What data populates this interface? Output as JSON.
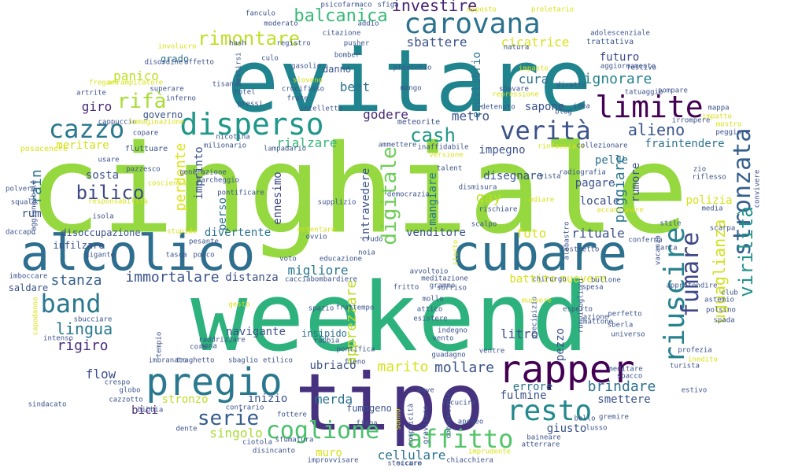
{
  "words": [
    {
      "text": "cinghiale",
      "color": "#95d840"
    },
    {
      "text": "weekend",
      "color": "#2db27d"
    },
    {
      "text": "evitare",
      "color": "#1f848e"
    },
    {
      "text": "tipo",
      "color": "#46327e"
    },
    {
      "text": "alcolico",
      "color": "#2e6e8e"
    },
    {
      "text": "cubare",
      "color": "#2d708e"
    },
    {
      "text": "rapper",
      "color": "#440154"
    },
    {
      "text": "pregio",
      "color": "#2a788e"
    },
    {
      "text": "carovana",
      "color": "#2c728e"
    },
    {
      "text": "disperso",
      "color": "#1f988b"
    },
    {
      "text": "verità",
      "color": "#3b528b"
    },
    {
      "text": "limite",
      "color": "#440154"
    },
    {
      "text": "riuscire",
      "color": "#26828e"
    },
    {
      "text": "fumare",
      "color": "#3f4788"
    },
    {
      "text": "resto",
      "color": "#23898e"
    },
    {
      "text": "affitto",
      "color": "#52c569"
    },
    {
      "text": "coglione",
      "color": "#4ac16d"
    },
    {
      "text": "cazzo",
      "color": "#2a788e"
    },
    {
      "text": "band",
      "color": "#2a788e"
    },
    {
      "text": "stronzata",
      "color": "#355f8d"
    },
    {
      "text": "virilità",
      "color": "#21918c"
    },
    {
      "text": "digitale",
      "color": "#6ece58"
    },
    {
      "text": "balcanica",
      "color": "#38b977"
    },
    {
      "text": "rimontare",
      "color": "#bddf26"
    },
    {
      "text": "investire",
      "color": "#482173"
    },
    {
      "text": "bilico",
      "color": "#3e4989"
    },
    {
      "text": "rifà",
      "color": "#a8db34"
    },
    {
      "text": "serie",
      "color": "#365d8d"
    },
    {
      "text": "cash",
      "color": "#1f988b"
    },
    {
      "text": "alieno",
      "color": "#39558c"
    },
    {
      "text": "uguaglianza",
      "color": "#d0e11c"
    },
    {
      "text": "lingua",
      "color": "#2a788e"
    },
    {
      "text": "rain",
      "color": "#2b758e"
    },
    {
      "text": "stanza",
      "color": "#34618d"
    },
    {
      "text": "marito",
      "color": "#d8e219"
    },
    {
      "text": "apprezzare",
      "color": "#bddf26"
    },
    {
      "text": "immortalare",
      "color": "#3b528b"
    },
    {
      "text": "perdente",
      "color": "#dde318"
    },
    {
      "text": "rigiro",
      "color": "#472d7b"
    },
    {
      "text": "mollare",
      "color": "#3b528b"
    },
    {
      "text": "brindare",
      "color": "#2c728e"
    },
    {
      "text": "litro",
      "color": "#3b528b"
    },
    {
      "text": "cicatrice",
      "color": "#d8e219"
    },
    {
      "text": "sbattere",
      "color": "#3b528b"
    },
    {
      "text": "futuro",
      "color": "#3e4989"
    },
    {
      "text": "ignorare",
      "color": "#26828e"
    },
    {
      "text": "fraintendere",
      "color": "#2c728e"
    },
    {
      "text": "panico",
      "color": "#bddf26"
    },
    {
      "text": "metro",
      "color": "#3b528b"
    },
    {
      "text": "giro",
      "color": "#482878"
    },
    {
      "text": "sapone",
      "color": "#3b528b"
    },
    {
      "text": "poggiare",
      "color": "#2a788e"
    },
    {
      "text": "pelle",
      "color": "#2c728e"
    },
    {
      "text": "migliore",
      "color": "#2a788e"
    },
    {
      "text": "venditore",
      "color": "#3b528b"
    },
    {
      "text": "ennesimo",
      "color": "#3e4989"
    },
    {
      "text": "rialzare",
      "color": "#35b779"
    },
    {
      "text": "godere",
      "color": "#482878"
    },
    {
      "text": "meritare",
      "color": "#d2e21b"
    },
    {
      "text": "sosta",
      "color": "#3b528b"
    },
    {
      "text": "bici",
      "color": "#482878"
    },
    {
      "text": "stronzo",
      "color": "#bddf26"
    },
    {
      "text": "merda",
      "color": "#2c728e"
    },
    {
      "text": "rituale",
      "color": "#3b528b"
    },
    {
      "text": "foto",
      "color": "#d8e219"
    },
    {
      "text": "errore",
      "color": "#2c728e"
    },
    {
      "text": "giusto",
      "color": "#3b528b"
    },
    {
      "text": "flow",
      "color": "#3b528b"
    },
    {
      "text": "navigante",
      "color": "#3b528b"
    },
    {
      "text": "singolo",
      "color": "#a8db34"
    },
    {
      "text": "muro",
      "color": "#d8e219"
    },
    {
      "text": "cellulare",
      "color": "#2c728e"
    },
    {
      "text": "ubriaco",
      "color": "#3b528b"
    },
    {
      "text": "mangiare",
      "color": "#2a788e"
    },
    {
      "text": "gay",
      "color": "#bddf26"
    },
    {
      "text": "intravedere",
      "color": "#3b528b"
    },
    {
      "text": "cura",
      "color": "#2c728e"
    },
    {
      "text": "beat",
      "color": "#2c728e"
    },
    {
      "text": "polizia",
      "color": "#d8e219"
    },
    {
      "text": "rumore",
      "color": "#3b528b"
    },
    {
      "text": "pagare",
      "color": "#3b528b"
    },
    {
      "text": "locale",
      "color": "#3b528b"
    },
    {
      "text": "imprinto",
      "color": "#3b528b"
    },
    {
      "text": "rum",
      "color": "#3b528b"
    },
    {
      "text": "perso",
      "color": "#2c728e"
    },
    {
      "text": "distanza",
      "color": "#3b528b"
    },
    {
      "text": "divertente",
      "color": "#2c728e"
    },
    {
      "text": "disegnare",
      "color": "#3b528b"
    },
    {
      "text": "impegno",
      "color": "#3b528b"
    },
    {
      "text": "equilibrio",
      "color": "#2c728e"
    },
    {
      "text": "fulmine",
      "color": "#3b528b"
    },
    {
      "text": "smettere",
      "color": "#3b528b"
    },
    {
      "text": "battito",
      "color": "#d8e219"
    },
    {
      "text": "muovere",
      "color": "#d8e219"
    },
    {
      "text": "inizio",
      "color": "#3b528b"
    },
    {
      "text": "pezzo",
      "color": "#3b528b"
    },
    {
      "text": "grado",
      "color": "#2c728e"
    },
    {
      "text": "governo",
      "color": "#3b528b"
    },
    {
      "text": "danno",
      "color": "#3b528b"
    },
    {
      "text": "insipido",
      "color": "#2c728e"
    },
    {
      "text": "fumogeno",
      "color": "#3b528b"
    },
    {
      "text": "disoccupazione",
      "color": "#3b528b"
    },
    {
      "text": "infilzare",
      "color": "#3b528b"
    },
    {
      "text": "saldare",
      "color": "#3b528b"
    },
    {
      "text": "meteorite",
      "color": "#3b528b"
    },
    {
      "text": "vincere",
      "color": "#a8db34"
    },
    {
      "text": "psicofarmaco",
      "color": "#3b528b"
    },
    {
      "text": "sfiga",
      "color": "#3b528b"
    },
    {
      "text": "fanculo",
      "color": "#3b528b"
    },
    {
      "text": "citazione",
      "color": "#3b528b"
    },
    {
      "text": "proletario",
      "color": "#d8e219"
    },
    {
      "text": "opposto",
      "color": "#d8e219"
    },
    {
      "text": "trattativa",
      "color": "#3b528b"
    },
    {
      "text": "aggiornamento",
      "color": "#3b528b"
    },
    {
      "text": "pusher",
      "color": "#3b528b"
    },
    {
      "text": "bomber",
      "color": "#3b528b"
    },
    {
      "text": "registro",
      "color": "#3b528b"
    },
    {
      "text": "natura",
      "color": "#3b528b"
    },
    {
      "text": "impasto",
      "color": "#d8e219"
    },
    {
      "text": "repressione",
      "color": "#d8e219"
    },
    {
      "text": "sbavare",
      "color": "#3b528b"
    },
    {
      "text": "mango",
      "color": "#3b528b"
    },
    {
      "text": "pidocchio",
      "color": "#3b528b"
    },
    {
      "text": "sloveno",
      "color": "#d8e219"
    },
    {
      "text": "gasolio",
      "color": "#3b528b"
    },
    {
      "text": "culo",
      "color": "#3b528b"
    },
    {
      "text": "disordine",
      "color": "#3b528b"
    },
    {
      "text": "fregare",
      "color": "#d8e219"
    },
    {
      "text": "arrampicatore",
      "color": "#d8e219"
    },
    {
      "text": "artrite",
      "color": "#3b528b"
    },
    {
      "text": "superare",
      "color": "#3b528b"
    },
    {
      "text": "inferno",
      "color": "#3b528b"
    },
    {
      "text": "tisana",
      "color": "#3b528b"
    },
    {
      "text": "hotel",
      "color": "#3b528b"
    },
    {
      "text": "frate",
      "color": "#3b528b"
    },
    {
      "text": "crocifisso",
      "color": "#3b528b"
    },
    {
      "text": "intelletto",
      "color": "#3b528b"
    },
    {
      "text": "pressi",
      "color": "#3b528b"
    },
    {
      "text": "mappa",
      "color": "#3b528b"
    },
    {
      "text": "impatto",
      "color": "#d8e219"
    },
    {
      "text": "mostro",
      "color": "#d8e219"
    },
    {
      "text": "peggiore",
      "color": "#3b528b"
    },
    {
      "text": "irrompere",
      "color": "#3b528b"
    },
    {
      "text": "blog",
      "color": "#3b528b"
    },
    {
      "text": "idea",
      "color": "#3b528b"
    },
    {
      "text": "ammettere",
      "color": "#3b528b"
    },
    {
      "text": "inaffidabile",
      "color": "#3b528b"
    },
    {
      "text": "versione",
      "color": "#d8e219"
    },
    {
      "text": "rinfacciare",
      "color": "#d8e219"
    },
    {
      "text": "collezionare",
      "color": "#3b528b"
    },
    {
      "text": "nicotina",
      "color": "#3b528b"
    },
    {
      "text": "milionario",
      "color": "#3b528b"
    },
    {
      "text": "lampadario",
      "color": "#3b528b"
    },
    {
      "text": "posacenere",
      "color": "#d8e219"
    },
    {
      "text": "fluttuare",
      "color": "#3b528b"
    },
    {
      "text": "usare",
      "color": "#3b528b"
    },
    {
      "text": "pazzesco",
      "color": "#3b528b"
    },
    {
      "text": "talent",
      "color": "#3b528b"
    },
    {
      "text": "radiografia",
      "color": "#3b528b"
    },
    {
      "text": "zio",
      "color": "#3b528b"
    },
    {
      "text": "riflesso",
      "color": "#3b528b"
    },
    {
      "text": "convivere",
      "color": "#3b528b"
    },
    {
      "text": "democrazia",
      "color": "#3b528b"
    },
    {
      "text": "dismisura",
      "color": "#3b528b"
    },
    {
      "text": "vista",
      "color": "#3b528b"
    },
    {
      "text": "odiare",
      "color": "#d8e219"
    },
    {
      "text": "rischiare",
      "color": "#3b528b"
    },
    {
      "text": "supplizio",
      "color": "#3b528b"
    },
    {
      "text": "scalpo",
      "color": "#3b528b"
    },
    {
      "text": "isola",
      "color": "#3b528b"
    },
    {
      "text": "daccapo",
      "color": "#3b528b"
    },
    {
      "text": "imboccare",
      "color": "#3b528b"
    },
    {
      "text": "capodanno",
      "color": "#d8e219"
    },
    {
      "text": "intenso",
      "color": "#3b528b"
    },
    {
      "text": "sbucciare",
      "color": "#3b528b"
    },
    {
      "text": "gigante",
      "color": "#3b528b"
    },
    {
      "text": "tasca",
      "color": "#3b528b"
    },
    {
      "text": "porco",
      "color": "#3b528b"
    },
    {
      "text": "cacciabombardiere",
      "color": "#3b528b"
    },
    {
      "text": "avvoltoio",
      "color": "#3b528b"
    },
    {
      "text": "meditazione",
      "color": "#3b528b"
    },
    {
      "text": "grammo",
      "color": "#3b528b"
    },
    {
      "text": "mollo",
      "color": "#3b528b"
    },
    {
      "text": "attico",
      "color": "#3b528b"
    },
    {
      "text": "esistere",
      "color": "#3b528b"
    },
    {
      "text": "indegno",
      "color": "#3b528b"
    },
    {
      "text": "rabbia",
      "color": "#3b528b"
    },
    {
      "text": "spazio",
      "color": "#3b528b"
    },
    {
      "text": "imbranato",
      "color": "#3b528b"
    },
    {
      "text": "traghetto",
      "color": "#3b528b"
    },
    {
      "text": "sbaglio",
      "color": "#3b528b"
    },
    {
      "text": "etilico",
      "color": "#3b528b"
    },
    {
      "text": "fottere",
      "color": "#3b528b"
    },
    {
      "text": "ciotola",
      "color": "#3b528b"
    },
    {
      "text": "sfumatura",
      "color": "#3b528b"
    },
    {
      "text": "disincanto",
      "color": "#3b528b"
    },
    {
      "text": "improvvisare",
      "color": "#3b528b"
    },
    {
      "text": "steccare",
      "color": "#3b528b"
    },
    {
      "text": "chiacchiera",
      "color": "#3b528b"
    },
    {
      "text": "imprudente",
      "color": "#d8e219"
    },
    {
      "text": "baineare",
      "color": "#3b528b"
    },
    {
      "text": "atterrare",
      "color": "#3b528b"
    },
    {
      "text": "apogeo",
      "color": "#3b528b"
    },
    {
      "text": "lusso",
      "color": "#3b528b"
    },
    {
      "text": "gremire",
      "color": "#3b528b"
    },
    {
      "text": "meditare",
      "color": "#3b528b"
    },
    {
      "text": "spacco",
      "color": "#3b528b"
    },
    {
      "text": "turista",
      "color": "#3b528b"
    },
    {
      "text": "profezia",
      "color": "#3b528b"
    },
    {
      "text": "inedito",
      "color": "#d8e219"
    },
    {
      "text": "universo",
      "color": "#3b528b"
    },
    {
      "text": "sberla",
      "color": "#3b528b"
    },
    {
      "text": "perfetto",
      "color": "#3b528b"
    },
    {
      "text": "spesa",
      "color": "#3b528b"
    },
    {
      "text": "bullone",
      "color": "#3b528b"
    },
    {
      "text": "conferma",
      "color": "#3b528b"
    },
    {
      "text": "chirurgo",
      "color": "#3b528b"
    },
    {
      "text": "accantonare",
      "color": "#d8e219"
    },
    {
      "text": "stile",
      "color": "#3b528b"
    },
    {
      "text": "scarpa",
      "color": "#3b528b"
    },
    {
      "text": "astemio",
      "color": "#3b528b"
    },
    {
      "text": "polsino",
      "color": "#3b528b"
    },
    {
      "text": "spada",
      "color": "#3b528b"
    },
    {
      "text": "approfondire",
      "color": "#3b528b"
    },
    {
      "text": "carta",
      "color": "#3b528b"
    },
    {
      "text": "club",
      "color": "#3b528b"
    },
    {
      "text": "media",
      "color": "#3b528b"
    },
    {
      "text": "alabastro",
      "color": "#3b528b"
    },
    {
      "text": "rompicoglioni",
      "color": "#3b528b"
    },
    {
      "text": "precipizio",
      "color": "#3b528b"
    },
    {
      "text": "adolescenziale",
      "color": "#3b528b"
    },
    {
      "text": "detenuto",
      "color": "#3b528b"
    },
    {
      "text": "tatuaggio",
      "color": "#3b528b"
    },
    {
      "text": "dirotto",
      "color": "#3b528b"
    },
    {
      "text": "squalo",
      "color": "#3b528b"
    },
    {
      "text": "polvere",
      "color": "#3b528b"
    },
    {
      "text": "dente",
      "color": "#3b528b"
    },
    {
      "text": "bibbia",
      "color": "#3b528b"
    },
    {
      "text": "crespo",
      "color": "#3b528b"
    },
    {
      "text": "globo",
      "color": "#3b528b"
    },
    {
      "text": "tempio",
      "color": "#3b528b"
    },
    {
      "text": "gesto",
      "color": "#d8e219"
    },
    {
      "text": "zona",
      "color": "#3b528b"
    },
    {
      "text": "core",
      "color": "#3b528b"
    },
    {
      "text": "sindacato",
      "color": "#3b528b"
    },
    {
      "text": "frattempo",
      "color": "#3b528b"
    },
    {
      "text": "crudo",
      "color": "#3b528b"
    },
    {
      "text": "noia",
      "color": "#3b528b"
    },
    {
      "text": "educazione",
      "color": "#3b528b"
    },
    {
      "text": "voto",
      "color": "#3b528b"
    },
    {
      "text": "ovvio",
      "color": "#3b528b"
    },
    {
      "text": "ostentare",
      "color": "#d8e219"
    },
    {
      "text": "stupido",
      "color": "#d8e219"
    },
    {
      "text": "responsabilità",
      "color": "#d8e219"
    },
    {
      "text": "coscienza",
      "color": "#d8e219"
    },
    {
      "text": "parcheggio",
      "color": "#3b528b"
    },
    {
      "text": "pontificare",
      "color": "#3b528b"
    },
    {
      "text": "generazione",
      "color": "#3b528b"
    },
    {
      "text": "cappuccio",
      "color": "#3b528b"
    },
    {
      "text": "copare",
      "color": "#3b528b"
    },
    {
      "text": "immaginazione",
      "color": "#d8e219"
    },
    {
      "text": "affetto",
      "color": "#3b528b"
    },
    {
      "text": "involucro",
      "color": "#d8e219"
    },
    {
      "text": "moderato",
      "color": "#3b528b"
    },
    {
      "text": "hash",
      "color": "#3b528b"
    },
    {
      "text": "addio",
      "color": "#3b528b"
    },
    {
      "text": "pentirsi",
      "color": "#3b528b"
    },
    {
      "text": "festivo",
      "color": "#3b528b"
    },
    {
      "text": "pompare",
      "color": "#3b528b"
    },
    {
      "text": "vacanza",
      "color": "#3b528b"
    },
    {
      "text": "muovere",
      "color": "#d8e219"
    },
    {
      "text": "esperto",
      "color": "#3b528b"
    },
    {
      "text": "azione",
      "color": "#3b528b"
    },
    {
      "text": "costretto",
      "color": "#3b528b"
    },
    {
      "text": "storto",
      "color": "#d8e219"
    },
    {
      "text": "pesante",
      "color": "#3b528b"
    },
    {
      "text": "estivo",
      "color": "#3b528b"
    },
    {
      "text": "ricucire",
      "color": "#3b528b"
    },
    {
      "text": "convenevole",
      "color": "#3b528b"
    },
    {
      "text": "complicità",
      "color": "#3b528b"
    },
    {
      "text": "gravitare",
      "color": "#3b528b"
    },
    {
      "text": "sonno",
      "color": "#d8e219"
    },
    {
      "text": "pontifica",
      "color": "#3b528b"
    },
    {
      "text": "raggiungibile",
      "color": "#3b528b"
    },
    {
      "text": "ventre",
      "color": "#3b528b"
    },
    {
      "text": "fritto",
      "color": "#3b528b"
    },
    {
      "text": "sicuro",
      "color": "#3b528b"
    },
    {
      "text": "mattone",
      "color": "#3b528b"
    },
    {
      "text": "sorriso",
      "color": "#3b528b"
    },
    {
      "text": "guadagno",
      "color": "#3b528b"
    },
    {
      "text": "fieno",
      "color": "#3b528b"
    },
    {
      "text": "contrario",
      "color": "#3b528b"
    },
    {
      "text": "raddrizzare",
      "color": "#3b528b"
    },
    {
      "text": "cazzotto",
      "color": "#3b528b"
    },
    {
      "text": "fiaba",
      "color": "#3b528b"
    },
    {
      "text": "nave",
      "color": "#3b528b"
    },
    {
      "text": "vento",
      "color": "#3b528b"
    },
    {
      "text": "bello",
      "color": "#3b528b"
    },
    {
      "text": "gol",
      "color": "#3b528b"
    },
    {
      "text": "giusto",
      "color": "#3b528b"
    },
    {
      "text": "sbavare",
      "color": "#3b528b"
    }
  ]
}
